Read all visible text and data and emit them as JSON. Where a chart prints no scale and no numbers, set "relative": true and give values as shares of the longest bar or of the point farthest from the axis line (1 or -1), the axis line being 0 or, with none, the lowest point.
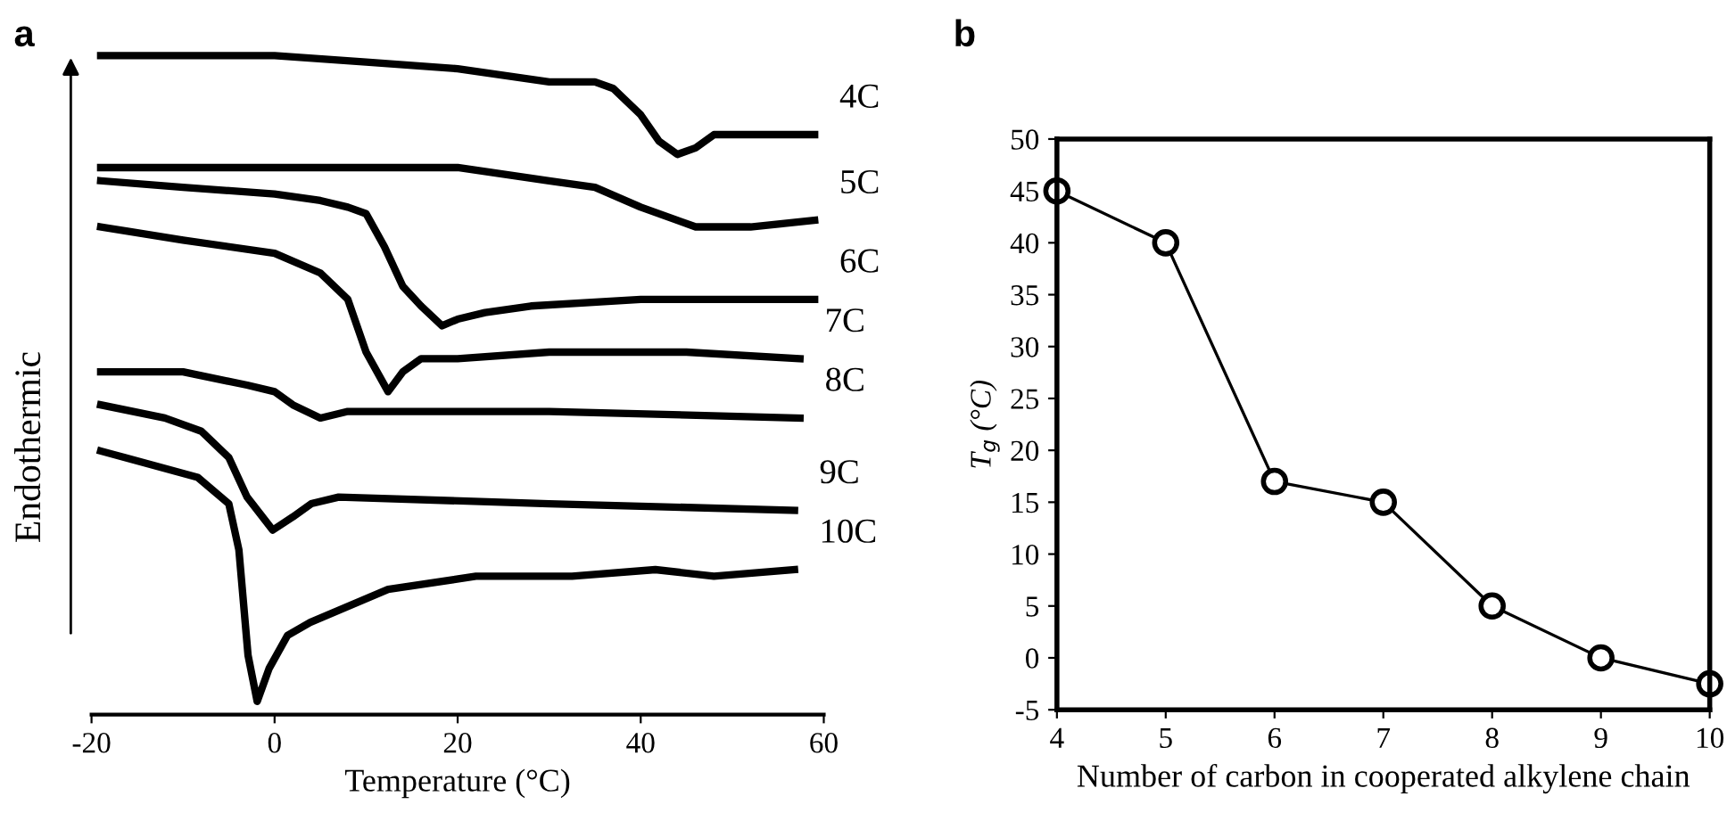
{
  "chart_data": [
    {
      "type": "line",
      "title": "a",
      "xlabel": "Temperature (°C)",
      "ylabel": "Endothermic",
      "relative": true,
      "xlim": [
        -20,
        60
      ],
      "xticks": [
        -20,
        0,
        20,
        40,
        60
      ],
      "tick_labels": "x",
      "grid": false,
      "legend": false,
      "marker": "none",
      "line_style": "solid",
      "series": [
        {
          "name": "4C",
          "color": "#000000",
          "x": [
            -19,
            0,
            10,
            20,
            30,
            35,
            37,
            40,
            42,
            44,
            46,
            48,
            52,
            59
          ],
          "values": [
            1.0,
            1.0,
            0.99,
            0.98,
            0.96,
            0.96,
            0.95,
            0.91,
            0.87,
            0.85,
            0.86,
            0.88,
            0.88,
            0.88
          ]
        },
        {
          "name": "5C",
          "color": "#000000",
          "x": [
            -19,
            10,
            20,
            30,
            35,
            40,
            44,
            46,
            52,
            59
          ],
          "values": [
            0.83,
            0.83,
            0.83,
            0.81,
            0.8,
            0.77,
            0.75,
            0.74,
            0.74,
            0.75
          ]
        },
        {
          "name": "6C",
          "color": "#000000",
          "x": [
            -19,
            -10,
            0,
            5,
            8,
            10,
            12,
            14,
            16,
            18.3,
            20,
            23,
            28,
            40,
            59
          ],
          "values": [
            0.81,
            0.8,
            0.79,
            0.78,
            0.77,
            0.76,
            0.71,
            0.65,
            0.62,
            0.59,
            0.6,
            0.61,
            0.62,
            0.63,
            0.63
          ]
        },
        {
          "name": "7C",
          "color": "#000000",
          "x": [
            -19,
            -10,
            0,
            5,
            8,
            10,
            12.4,
            14,
            16,
            20,
            30,
            45,
            57.4
          ],
          "values": [
            0.74,
            0.72,
            0.7,
            0.67,
            0.63,
            0.55,
            0.49,
            0.52,
            0.54,
            0.54,
            0.55,
            0.55,
            0.54
          ]
        },
        {
          "name": "8C",
          "color": "#000000",
          "x": [
            -19,
            -10,
            -3,
            0,
            2,
            5,
            8,
            12,
            30,
            57.4
          ],
          "values": [
            0.52,
            0.52,
            0.5,
            0.49,
            0.47,
            0.45,
            0.46,
            0.46,
            0.46,
            0.45
          ]
        },
        {
          "name": "9C",
          "color": "#000000",
          "x": [
            -19,
            -12,
            -8,
            -5,
            -3,
            -0.2,
            2,
            4,
            7,
            30,
            56.8
          ],
          "values": [
            0.47,
            0.45,
            0.43,
            0.39,
            0.33,
            0.28,
            0.3,
            0.32,
            0.33,
            0.32,
            0.31
          ]
        },
        {
          "name": "10C",
          "color": "#000000",
          "x": [
            -19,
            -8.4,
            -5,
            -3.9,
            -2.9,
            -1.9,
            -0.6,
            1.4,
            3.9,
            12.4,
            22,
            32.5,
            41.6,
            48,
            56.8
          ],
          "values": [
            0.4,
            0.36,
            0.32,
            0.25,
            0.09,
            0.02,
            0.07,
            0.12,
            0.14,
            0.19,
            0.21,
            0.21,
            0.22,
            0.21,
            0.22
          ]
        }
      ]
    },
    {
      "type": "line",
      "title": "b",
      "xlabel": "Number of carbon in cooperated alkylene chain",
      "ylabel": "T$_{g}$ (°C)",
      "xlim": [
        4,
        10
      ],
      "xticks": [
        4,
        5,
        6,
        7,
        8,
        9,
        10
      ],
      "ylim": [
        -5,
        50
      ],
      "yticks": [
        -5,
        0,
        5,
        10,
        15,
        20,
        25,
        30,
        35,
        40,
        45,
        50
      ],
      "grid": false,
      "legend": false,
      "marker": "circle",
      "line_style": "solid",
      "series": [
        {
          "color": "#000000",
          "x": [
            4,
            5,
            6,
            7,
            8,
            9,
            10
          ],
          "values": [
            45,
            40,
            17,
            15,
            5,
            0,
            -2.5
          ]
        }
      ]
    }
  ]
}
